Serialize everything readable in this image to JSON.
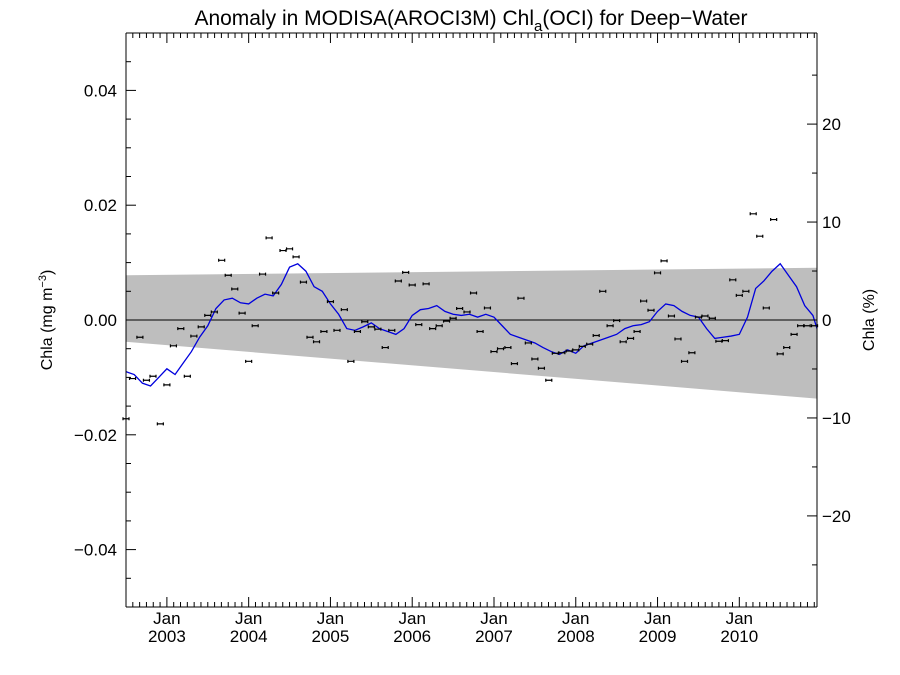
{
  "chart_data": {
    "type": "scatter",
    "title_parts": {
      "prefix": "Anomaly in MODISA(AROCI3M) Chl",
      "subscript": "a",
      "suffix": "(OCI) for Deep−Water"
    },
    "ylabel_left": {
      "prefix": "Chla (mg m",
      "superscript": "−3",
      "suffix": ")"
    },
    "ylabel_right": "Chla (%)",
    "xlim": [
      2002.5,
      2010.95
    ],
    "ylim": [
      -0.05,
      0.05
    ],
    "y2lim": [
      -29.3,
      29.3
    ],
    "x_major_ticks": [
      {
        "x": 2003.0,
        "top": "Jan",
        "bottom": "2003"
      },
      {
        "x": 2004.0,
        "top": "Jan",
        "bottom": "2004"
      },
      {
        "x": 2005.0,
        "top": "Jan",
        "bottom": "2005"
      },
      {
        "x": 2006.0,
        "top": "Jan",
        "bottom": "2006"
      },
      {
        "x": 2007.0,
        "top": "Jan",
        "bottom": "2007"
      },
      {
        "x": 2008.0,
        "top": "Jan",
        "bottom": "2008"
      },
      {
        "x": 2009.0,
        "top": "Jan",
        "bottom": "2009"
      },
      {
        "x": 2010.0,
        "top": "Jan",
        "bottom": "2010"
      }
    ],
    "y_left_ticks": [
      {
        "v": 0.04,
        "label": "0.04"
      },
      {
        "v": 0.02,
        "label": "0.02"
      },
      {
        "v": 0.0,
        "label": "0.00"
      },
      {
        "v": -0.02,
        "label": "−0.02"
      },
      {
        "v": -0.04,
        "label": "−0.04"
      }
    ],
    "y_right_ticks": [
      {
        "v": 20,
        "label": "20"
      },
      {
        "v": 10,
        "label": "10"
      },
      {
        "v": 0,
        "label": "0"
      },
      {
        "v": -10,
        "label": "−10"
      },
      {
        "v": -20,
        "label": "−20"
      }
    ],
    "band": {
      "x": [
        2002.5,
        2010.95
      ],
      "upper": [
        0.0078,
        0.0091
      ],
      "lower": [
        -0.0038,
        -0.0137
      ],
      "color": "#bebebe"
    },
    "zero_line": 0,
    "smooth_series": {
      "color": "#0000dd",
      "x": [
        2002.5,
        2002.6,
        2002.7,
        2002.8,
        2002.9,
        2003.0,
        2003.1,
        2003.2,
        2003.3,
        2003.4,
        2003.5,
        2003.6,
        2003.7,
        2003.8,
        2003.9,
        2004.0,
        2004.1,
        2004.2,
        2004.3,
        2004.4,
        2004.5,
        2004.6,
        2004.7,
        2004.8,
        2004.9,
        2005.0,
        2005.1,
        2005.2,
        2005.3,
        2005.4,
        2005.5,
        2005.6,
        2005.7,
        2005.8,
        2005.9,
        2006.0,
        2006.1,
        2006.2,
        2006.3,
        2006.4,
        2006.5,
        2006.6,
        2006.7,
        2006.8,
        2006.9,
        2007.0,
        2007.1,
        2007.2,
        2007.3,
        2007.4,
        2007.5,
        2007.6,
        2007.7,
        2007.8,
        2007.9,
        2008.0,
        2008.1,
        2008.2,
        2008.3,
        2008.4,
        2008.5,
        2008.6,
        2008.7,
        2008.8,
        2008.9,
        2009.0,
        2009.1,
        2009.2,
        2009.3,
        2009.4,
        2009.5,
        2009.6,
        2009.7,
        2009.8,
        2009.9,
        2010.0,
        2010.1,
        2010.2,
        2010.3,
        2010.4,
        2010.5,
        2010.6,
        2010.7,
        2010.8,
        2010.9,
        2010.95
      ],
      "y": [
        -0.009,
        -0.0095,
        -0.011,
        -0.0115,
        -0.01,
        -0.0085,
        -0.0095,
        -0.0075,
        -0.0055,
        -0.003,
        -0.001,
        0.002,
        0.0035,
        0.0038,
        0.003,
        0.0028,
        0.0038,
        0.0045,
        0.0042,
        0.0062,
        0.0092,
        0.0098,
        0.0085,
        0.0058,
        0.005,
        0.0028,
        0.001,
        -0.0015,
        -0.0018,
        -0.0012,
        -0.0005,
        -0.0015,
        -0.002,
        -0.0025,
        -0.0015,
        0.0008,
        0.0018,
        0.002,
        0.0025,
        0.0015,
        0.001,
        0.0008,
        0.001,
        0.0005,
        0.001,
        0.0005,
        -0.001,
        -0.0025,
        -0.003,
        -0.0035,
        -0.004,
        -0.0048,
        -0.0055,
        -0.006,
        -0.0052,
        -0.0058,
        -0.0045,
        -0.004,
        -0.0035,
        -0.003,
        -0.0025,
        -0.0015,
        -0.001,
        -0.0008,
        -0.0003,
        0.0015,
        0.0028,
        0.0025,
        0.0015,
        0.0008,
        0.0005,
        -0.0015,
        -0.0032,
        -0.003,
        -0.0028,
        -0.0025,
        0.0005,
        0.0055,
        0.0068,
        0.0085,
        0.0098,
        0.0078,
        0.0058,
        0.0025,
        0.0008,
        -0.0015
      ]
    },
    "points": {
      "x": [
        2002.5,
        2002.58,
        2002.67,
        2002.75,
        2002.83,
        2002.92,
        2003.0,
        2003.08,
        2003.17,
        2003.25,
        2003.33,
        2003.42,
        2003.5,
        2003.58,
        2003.67,
        2003.75,
        2003.83,
        2003.92,
        2004.0,
        2004.08,
        2004.17,
        2004.25,
        2004.33,
        2004.42,
        2004.5,
        2004.58,
        2004.67,
        2004.75,
        2004.83,
        2004.92,
        2005.0,
        2005.08,
        2005.17,
        2005.25,
        2005.33,
        2005.42,
        2005.5,
        2005.58,
        2005.67,
        2005.75,
        2005.83,
        2005.92,
        2006.0,
        2006.08,
        2006.17,
        2006.25,
        2006.33,
        2006.42,
        2006.5,
        2006.58,
        2006.67,
        2006.75,
        2006.83,
        2006.92,
        2007.0,
        2007.08,
        2007.17,
        2007.25,
        2007.33,
        2007.42,
        2007.5,
        2007.58,
        2007.67,
        2007.75,
        2007.83,
        2007.92,
        2008.0,
        2008.08,
        2008.17,
        2008.25,
        2008.33,
        2008.42,
        2008.5,
        2008.58,
        2008.67,
        2008.75,
        2008.83,
        2008.92,
        2009.0,
        2009.08,
        2009.17,
        2009.25,
        2009.33,
        2009.42,
        2009.5,
        2009.58,
        2009.67,
        2009.75,
        2009.83,
        2009.92,
        2010.0,
        2010.08,
        2010.17,
        2010.25,
        2010.33,
        2010.42,
        2010.5,
        2010.58,
        2010.67,
        2010.75,
        2010.83,
        2010.92
      ],
      "y": [
        -0.0172,
        -0.0102,
        -0.003,
        -0.0105,
        -0.0098,
        -0.0181,
        -0.0113,
        -0.0045,
        -0.0015,
        -0.0098,
        -0.0028,
        -0.0012,
        0.0008,
        0.0014,
        0.0104,
        0.0078,
        0.0054,
        0.0012,
        -0.0072,
        -0.001,
        0.008,
        0.0143,
        0.0047,
        0.0121,
        0.0124,
        0.011,
        0.0066,
        -0.003,
        -0.0038,
        -0.002,
        0.0032,
        -0.0018,
        0.0018,
        -0.0072,
        -0.002,
        -0.0003,
        -0.0012,
        -0.0016,
        -0.0048,
        -0.0018,
        0.0068,
        0.0083,
        0.0061,
        -0.0008,
        0.0063,
        -0.0015,
        -0.001,
        -0.0002,
        0.0003,
        0.002,
        0.0014,
        0.0047,
        -0.002,
        0.0021,
        -0.0055,
        -0.005,
        -0.0048,
        -0.0076,
        0.0038,
        -0.004,
        -0.0068,
        -0.0084,
        -0.0105,
        -0.0058,
        -0.0057,
        -0.0054,
        -0.0052,
        -0.0046,
        -0.0042,
        -0.0027,
        0.005,
        -0.001,
        -0.0001,
        -0.0038,
        -0.0032,
        -0.002,
        0.0033,
        0.0017,
        0.0082,
        0.0103,
        0.0007,
        -0.0033,
        -0.0072,
        -0.0057,
        0.0005,
        0.0007,
        0.0003,
        -0.0037,
        -0.0036,
        0.007,
        0.0043,
        0.005,
        0.0185,
        0.0146,
        0.0021,
        0.0175,
        -0.0059,
        -0.0048,
        -0.0025,
        -0.001,
        -0.001,
        -0.001
      ]
    }
  }
}
